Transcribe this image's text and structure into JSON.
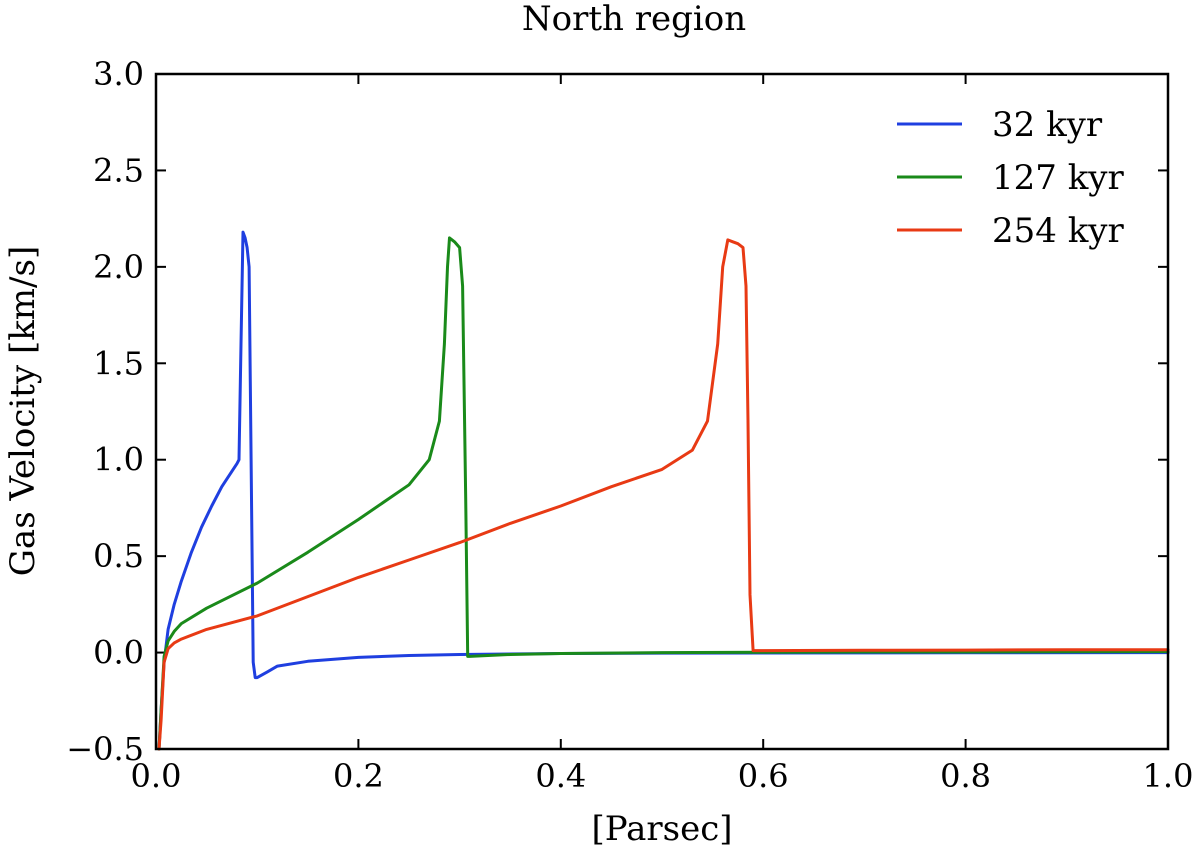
{
  "chart_data": {
    "type": "line",
    "title": "North region",
    "xlabel": "[Parsec]",
    "ylabel": "Gas Velocity [km/s]",
    "xlim": [
      0.0,
      1.0
    ],
    "ylim": [
      -0.5,
      3.0
    ],
    "xticks": [
      "0.0",
      "0.2",
      "0.4",
      "0.6",
      "0.8",
      "1.0"
    ],
    "yticks": [
      "−0.5",
      "0.0",
      "0.5",
      "1.0",
      "1.5",
      "2.0",
      "2.5",
      "3.0"
    ],
    "grid": false,
    "legend_position": "top-right",
    "series": [
      {
        "name": "32 kyr",
        "color": "#1f3fe0",
        "x": [
          0.003,
          0.005,
          0.008,
          0.012,
          0.018,
          0.025,
          0.035,
          0.045,
          0.055,
          0.065,
          0.075,
          0.08,
          0.082,
          0.084,
          0.086,
          0.088,
          0.09,
          0.092,
          0.094,
          0.096,
          0.098,
          0.1,
          0.11,
          0.12,
          0.15,
          0.2,
          0.25,
          0.3,
          0.4,
          0.5,
          0.6,
          0.8,
          1.0
        ],
        "y": [
          -0.5,
          -0.3,
          -0.05,
          0.12,
          0.25,
          0.37,
          0.52,
          0.65,
          0.76,
          0.86,
          0.94,
          0.98,
          1.0,
          1.6,
          2.18,
          2.15,
          2.1,
          2.0,
          1.0,
          -0.05,
          -0.13,
          -0.13,
          -0.1,
          -0.07,
          -0.045,
          -0.025,
          -0.015,
          -0.01,
          -0.005,
          -0.003,
          -0.002,
          -0.001,
          0.0
        ]
      },
      {
        "name": "127 kyr",
        "color": "#1a8a1a",
        "x": [
          0.003,
          0.005,
          0.008,
          0.012,
          0.018,
          0.025,
          0.05,
          0.1,
          0.15,
          0.2,
          0.25,
          0.27,
          0.28,
          0.285,
          0.288,
          0.29,
          0.295,
          0.3,
          0.303,
          0.306,
          0.308,
          0.31,
          0.35,
          0.4,
          0.5,
          0.6,
          0.7,
          0.8,
          0.9,
          1.0
        ],
        "y": [
          -0.5,
          -0.3,
          -0.02,
          0.06,
          0.11,
          0.15,
          0.23,
          0.36,
          0.52,
          0.69,
          0.87,
          1.0,
          1.2,
          1.6,
          2.0,
          2.15,
          2.13,
          2.1,
          1.9,
          0.8,
          -0.02,
          -0.02,
          -0.01,
          -0.005,
          0.0,
          0.002,
          0.003,
          0.003,
          0.004,
          0.005
        ]
      },
      {
        "name": "254 kyr",
        "color": "#e83a14",
        "x": [
          0.003,
          0.005,
          0.008,
          0.012,
          0.018,
          0.025,
          0.05,
          0.1,
          0.15,
          0.2,
          0.25,
          0.3,
          0.35,
          0.4,
          0.45,
          0.5,
          0.53,
          0.545,
          0.555,
          0.56,
          0.565,
          0.57,
          0.575,
          0.58,
          0.583,
          0.585,
          0.587,
          0.59,
          0.6,
          0.7,
          0.8,
          0.9,
          1.0
        ],
        "y": [
          -0.5,
          -0.35,
          -0.05,
          0.02,
          0.05,
          0.07,
          0.12,
          0.19,
          0.29,
          0.39,
          0.48,
          0.57,
          0.67,
          0.76,
          0.86,
          0.95,
          1.05,
          1.2,
          1.6,
          2.0,
          2.14,
          2.13,
          2.12,
          2.1,
          1.9,
          1.2,
          0.3,
          0.01,
          0.01,
          0.012,
          0.013,
          0.015,
          0.015
        ]
      }
    ]
  }
}
